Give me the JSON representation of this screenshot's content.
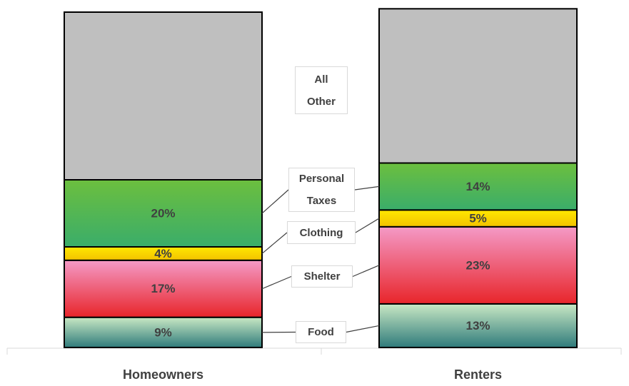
{
  "chart_data": {
    "type": "stacked_bar",
    "categories": [
      "Homeowners",
      "Renters"
    ],
    "ylim": [
      0,
      100
    ],
    "series": [
      {
        "name": "Food",
        "color": [
          "#c9e8c4",
          "#2f7b7b"
        ],
        "values": [
          9,
          13
        ],
        "value_labels": [
          "9%",
          "13%"
        ]
      },
      {
        "name": "Shelter",
        "color": [
          "#f49ac7",
          "#e8252a"
        ],
        "values": [
          17,
          23
        ],
        "value_labels": [
          "17%",
          "23%"
        ]
      },
      {
        "name": "Clothing",
        "color": [
          "#ffe800",
          "#f2c200"
        ],
        "values": [
          4,
          5
        ],
        "value_labels": [
          "4%",
          "5%"
        ]
      },
      {
        "name": "Personal Taxes",
        "color": [
          "#6cbf3e",
          "#3aad6a"
        ],
        "values": [
          20,
          14
        ],
        "value_labels": [
          "20%",
          "14%"
        ]
      },
      {
        "name": "All Other",
        "color": [
          "#bfbfbf",
          "#bfbfbf"
        ],
        "values": [
          50,
          46
        ]
      }
    ]
  }
}
